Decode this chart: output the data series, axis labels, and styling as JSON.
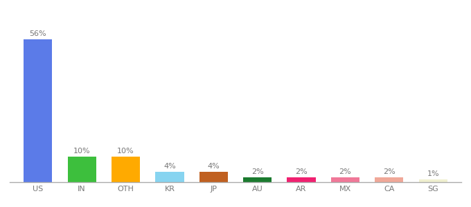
{
  "categories": [
    "US",
    "IN",
    "OTH",
    "KR",
    "JP",
    "AU",
    "AR",
    "MX",
    "CA",
    "SG"
  ],
  "values": [
    56,
    10,
    10,
    4,
    4,
    2,
    2,
    2,
    2,
    1
  ],
  "bar_colors": [
    "#5b7be8",
    "#3dbf3d",
    "#ffaa00",
    "#87d4f0",
    "#c06020",
    "#1a7a2e",
    "#f02070",
    "#f07898",
    "#f0a898",
    "#f0f0d0"
  ],
  "title": "",
  "label_fontsize": 8,
  "tick_fontsize": 8,
  "ylim": [
    0,
    65
  ],
  "background_color": "#ffffff"
}
